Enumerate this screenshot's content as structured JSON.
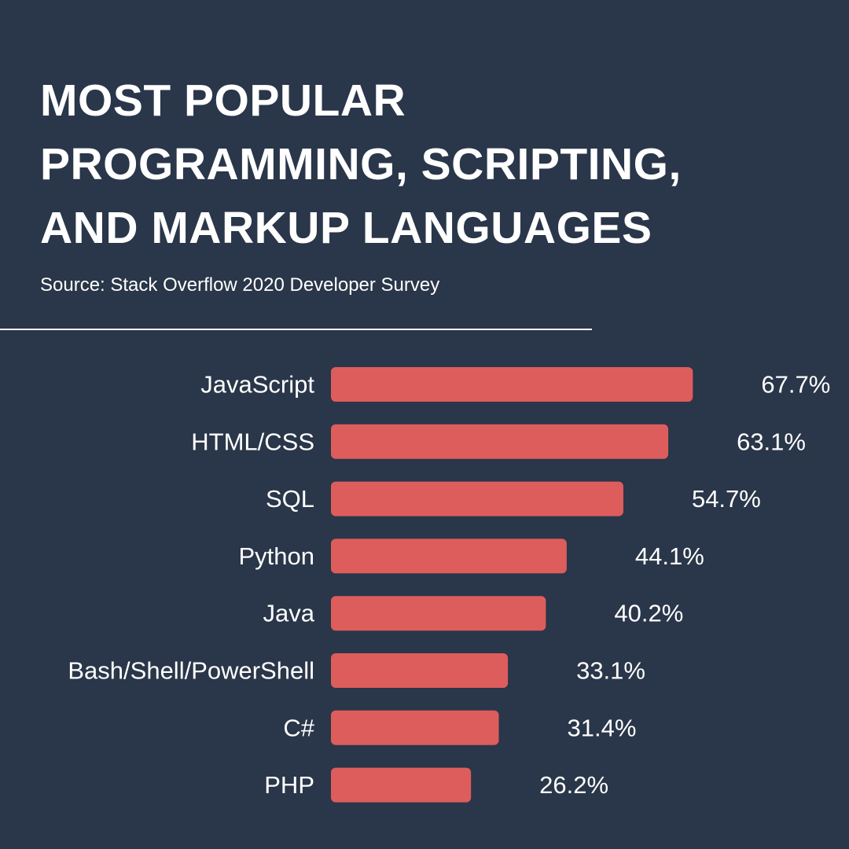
{
  "colors": {
    "background": "#2a3649",
    "bar": "#dd5d5c",
    "text": "#ffffff",
    "divider": "#ffffff"
  },
  "header": {
    "title_lines": [
      "MOST POPULAR",
      "PROGRAMMING, SCRIPTING,",
      "AND MARKUP LANGUAGES"
    ],
    "subtitle": "Source: Stack Overflow 2020 Developer Survey"
  },
  "chart_data": {
    "type": "bar",
    "orientation": "horizontal",
    "title": "MOST POPULAR PROGRAMMING, SCRIPTING, AND MARKUP LANGUAGES",
    "subtitle": "Source: Stack Overflow 2020 Developer Survey",
    "categories": [
      "JavaScript",
      "HTML/CSS",
      "SQL",
      "Python",
      "Java",
      "Bash/Shell/PowerShell",
      "C#",
      "PHP"
    ],
    "values": [
      67.7,
      63.1,
      54.7,
      44.1,
      40.2,
      33.1,
      31.4,
      26.2
    ],
    "value_labels": [
      "67.7%",
      "63.1%",
      "54.7%",
      "44.1%",
      "40.2%",
      "33.1%",
      "31.4%",
      "26.2%"
    ],
    "unit": "%",
    "xlim": [
      0,
      100
    ],
    "grid": false,
    "legend": "none"
  }
}
